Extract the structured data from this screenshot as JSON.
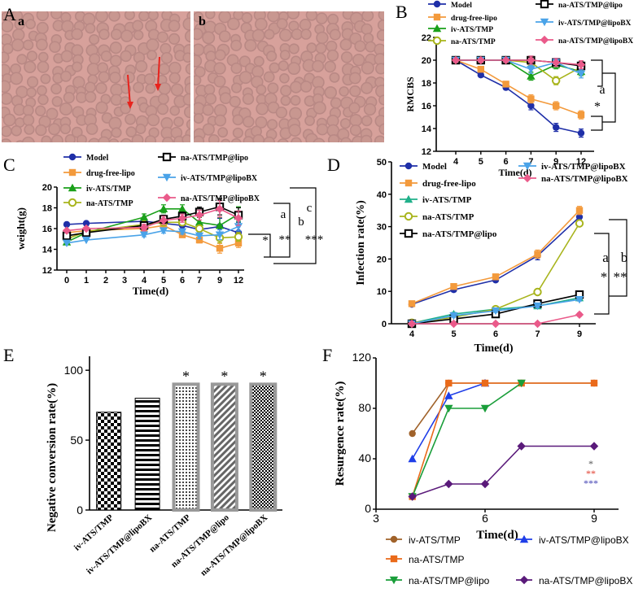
{
  "panelA": {
    "letter": "A",
    "sub_a": "a",
    "sub_b": "b",
    "arrow_color": "#e8231d",
    "bg_color": "#d7a19b",
    "cell_color": "#b98985"
  },
  "chart_data": [
    {
      "id": "B",
      "type": "line",
      "title": "",
      "xlabel": "Time(d)",
      "ylabel": "RMCBS",
      "categories": [
        "4",
        "5",
        "6",
        "7",
        "9",
        "12"
      ],
      "ylim": [
        12,
        22
      ],
      "yticks": [
        12,
        14,
        16,
        18,
        20,
        22
      ],
      "series": [
        {
          "name": "Model",
          "color": "#1f2fa8",
          "marker": "circle",
          "values": [
            20,
            18.7,
            17.6,
            16.0,
            14.1,
            13.6
          ]
        },
        {
          "name": "drug-free-lipo",
          "color": "#f39a3c",
          "marker": "square",
          "values": [
            20,
            19.2,
            17.9,
            16.6,
            16.0,
            15.2
          ]
        },
        {
          "name": "iv-ATS/TMP",
          "color": "#1aa01a",
          "marker": "triangle",
          "values": [
            20,
            20,
            20,
            18.6,
            19.6,
            19.0
          ]
        },
        {
          "name": "na-ATS/TMP",
          "color": "#a8b41c",
          "marker": "circle-open",
          "values": [
            20,
            20,
            20,
            19.8,
            18.2,
            19.4
          ]
        },
        {
          "name": "na-ATS/TMP@lipo",
          "color": "#000000",
          "marker": "square-open",
          "values": [
            20,
            20,
            20,
            20,
            19.8,
            19.5
          ]
        },
        {
          "name": "iv-ATS/TMP@lipoBX",
          "color": "#4aa3e8",
          "marker": "tri-down",
          "values": [
            20,
            20,
            20,
            19.2,
            19.8,
            18.8
          ]
        },
        {
          "name": "na-ATS/TMP@lipoBX",
          "color": "#ea5a8a",
          "marker": "diamond",
          "values": [
            20,
            20,
            20,
            20,
            19.8,
            19.6
          ]
        }
      ],
      "annotations": [
        "a",
        "*"
      ]
    },
    {
      "id": "C",
      "type": "line",
      "title": "",
      "xlabel": "Time(d)",
      "ylabel": "weight(g)",
      "categories": [
        "0",
        "1",
        "2",
        "3",
        "4",
        "5",
        "6",
        "7",
        "8",
        "9",
        "12"
      ],
      "x": [
        0,
        1,
        4,
        5,
        6,
        7,
        9,
        12
      ],
      "ylim": [
        12,
        20
      ],
      "yticks": [
        12,
        14,
        16,
        18,
        20
      ],
      "series": [
        {
          "name": "Model",
          "color": "#1f2fa8",
          "marker": "circle",
          "values": [
            16.4,
            16.5,
            16.7,
            16.5,
            16.3,
            15.9,
            16.2,
            15.6
          ]
        },
        {
          "name": "drug-free-lipo",
          "color": "#f39a3c",
          "marker": "square",
          "values": [
            15.6,
            15.8,
            16.0,
            16.3,
            15.4,
            14.9,
            14.1,
            14.6
          ]
        },
        {
          "name": "iv-ATS/TMP",
          "color": "#1aa01a",
          "marker": "triangle",
          "values": [
            14.7,
            15.6,
            17.1,
            17.9,
            17.9,
            16.6,
            16.3,
            17.4
          ]
        },
        {
          "name": "na-ATS/TMP",
          "color": "#a8b41c",
          "marker": "circle-open",
          "values": [
            15.0,
            15.7,
            16.4,
            16.6,
            16.6,
            16.0,
            15.1,
            15.2
          ]
        },
        {
          "name": "na-ATS/TMP@lipo",
          "color": "#000000",
          "marker": "square-open",
          "values": [
            15.3,
            15.6,
            16.3,
            16.9,
            17.2,
            17.6,
            18.1,
            17.3
          ]
        },
        {
          "name": "iv-ATS/TMP@lipoBX",
          "color": "#4aa3e8",
          "marker": "tri-down",
          "values": [
            14.6,
            14.9,
            15.4,
            15.8,
            15.7,
            15.3,
            15.4,
            16.2
          ]
        },
        {
          "name": "na-ATS/TMP@lipoBX",
          "color": "#ea5a8a",
          "marker": "diamond",
          "values": [
            15.8,
            16.0,
            16.1,
            16.8,
            17.0,
            17.3,
            17.9,
            17.0
          ]
        }
      ],
      "annotations": [
        "a",
        "*",
        "b",
        "**",
        "c",
        "***"
      ]
    },
    {
      "id": "D",
      "type": "line",
      "title": "",
      "xlabel": "Time(d)",
      "ylabel": "Infection rate(%)",
      "categories": [
        "4",
        "5",
        "6",
        "7",
        "9"
      ],
      "ylim": [
        0,
        50
      ],
      "yticks": [
        0,
        10,
        20,
        30,
        40,
        50
      ],
      "series": [
        {
          "name": "Model",
          "color": "#1f2fa8",
          "marker": "circle",
          "values": [
            6,
            10.5,
            13.5,
            21,
            33
          ]
        },
        {
          "name": "drug-free-lipo",
          "color": "#f39a3c",
          "marker": "square",
          "values": [
            6.2,
            11.5,
            14.5,
            21.5,
            35
          ]
        },
        {
          "name": "iv-ATS/TMP",
          "color": "#20b08a",
          "marker": "triangle",
          "values": [
            0.2,
            3,
            4.5,
            5.5,
            8
          ]
        },
        {
          "name": "na-ATS/TMP",
          "color": "#a8b41c",
          "marker": "circle-open",
          "values": [
            0.3,
            2,
            4.5,
            9.8,
            31
          ]
        },
        {
          "name": "na-ATS/TMP@lipo",
          "color": "#000000",
          "marker": "square-open",
          "values": [
            0,
            1.5,
            3.0,
            6.2,
            9
          ]
        },
        {
          "name": "iv-ATS/TMP@lipoBX",
          "color": "#4aa3e8",
          "marker": "tri-down",
          "values": [
            0,
            2.5,
            4.0,
            5.5,
            7.5
          ]
        },
        {
          "name": "na-ATS/TMP@lipoBX",
          "color": "#ea5a8a",
          "marker": "diamond",
          "values": [
            0,
            0,
            0,
            0,
            2.8
          ]
        }
      ],
      "annotations": [
        "a",
        "*",
        "b",
        "**"
      ]
    },
    {
      "id": "E",
      "type": "bar",
      "title": "",
      "xlabel": "",
      "ylabel": "Negative conversion rate(%)",
      "categories": [
        "iv-ATS/TMP",
        "iv-ATS/TMP@lipoBX",
        "na-ATS/TMP",
        "na-ATS/TMP@lipo",
        "na-ATS/TMP@lipoBX"
      ],
      "values": [
        70,
        80,
        90,
        90,
        90
      ],
      "significance": [
        "",
        "",
        "*",
        "*",
        "*"
      ],
      "ylim": [
        0,
        110
      ],
      "yticks": [
        0,
        50,
        100
      ]
    },
    {
      "id": "F",
      "type": "line",
      "title": "",
      "xlabel": "Time(d)",
      "ylabel": "Resurgence rate(%)",
      "xlim": [
        3,
        9
      ],
      "xticks": [
        3,
        6,
        9
      ],
      "ylim": [
        0,
        120
      ],
      "yticks": [
        0,
        40,
        80,
        120
      ],
      "series": [
        {
          "name": "iv-ATS/TMP",
          "color": "#a0622a",
          "marker": "circle",
          "x": [
            4,
            5,
            6,
            7,
            9
          ],
          "values": [
            60,
            100,
            100,
            100,
            100
          ]
        },
        {
          "name": "iv-ATS/TMP@lipoBX",
          "color": "#1f3ee8",
          "marker": "triangle",
          "x": [
            4,
            5,
            6
          ],
          "values": [
            40,
            90,
            100
          ]
        },
        {
          "name": "na-ATS/TMP",
          "color": "#ea6a1a",
          "marker": "square",
          "x": [
            4,
            5,
            6,
            7,
            9
          ],
          "values": [
            10,
            100,
            100,
            100,
            100
          ]
        },
        {
          "name": "na-ATS/TMP@lipo",
          "color": "#1a9e3a",
          "marker": "tri-down",
          "x": [
            4,
            5,
            6,
            7
          ],
          "values": [
            10,
            80,
            80,
            100
          ]
        },
        {
          "name": "na-ATS/TMP@lipoBX",
          "color": "#5a1a7a",
          "marker": "diamond",
          "x": [
            4,
            5,
            6,
            7,
            9
          ],
          "values": [
            10,
            20,
            20,
            50,
            50
          ]
        }
      ],
      "sig": [
        {
          "text": "*",
          "color": "#555555"
        },
        {
          "text": "**",
          "color": "#e03a2a"
        },
        {
          "text": "***",
          "color": "#3a3ab0"
        }
      ]
    }
  ]
}
